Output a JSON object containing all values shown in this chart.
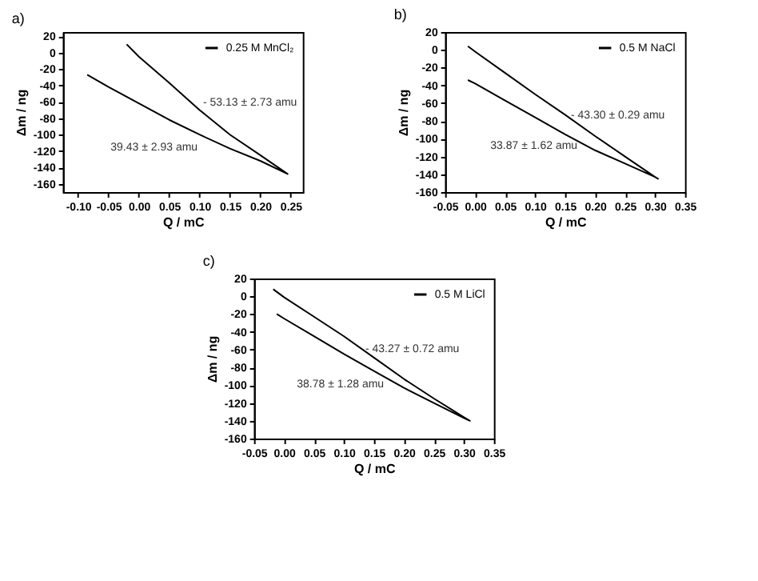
{
  "chart_data": [
    {
      "type": "line",
      "title": "a)",
      "xlabel": "Q / mC",
      "ylabel": "Δm / ng",
      "xlim": [
        -0.125,
        0.27
      ],
      "ylim": [
        -170,
        25
      ],
      "xticks": [
        {
          "value": -0.1,
          "label": "-0.10"
        },
        {
          "value": -0.05,
          "label": "-0.05"
        },
        {
          "value": 0,
          "label": "0.00"
        },
        {
          "value": 0.05,
          "label": "0.05"
        },
        {
          "value": 0.1,
          "label": "0.10"
        },
        {
          "value": 0.15,
          "label": "0.15"
        },
        {
          "value": 0.2,
          "label": "0.20"
        },
        {
          "value": 0.25,
          "label": "0.25"
        }
      ],
      "yticks": [
        {
          "value": -160,
          "label": "-160"
        },
        {
          "value": -140,
          "label": "-140"
        },
        {
          "value": -120,
          "label": "-120"
        },
        {
          "value": -100,
          "label": "-100"
        },
        {
          "value": -80,
          "label": "-80"
        },
        {
          "value": -60,
          "label": "-60"
        },
        {
          "value": -40,
          "label": "-40"
        },
        {
          "value": -20,
          "label": "-20"
        },
        {
          "value": 0,
          "label": "0"
        },
        {
          "value": 20,
          "label": "20"
        }
      ],
      "legend": "top right",
      "grid": false,
      "series": [
        {
          "name": "0.25 M MnCl₂",
          "color": "#000000",
          "x": [
            -0.02,
            0,
            0.05,
            0.1,
            0.15,
            0.2,
            0.245,
            0.2,
            0.15,
            0.1,
            0.05,
            0,
            -0.05,
            -0.085
          ],
          "values": [
            10,
            -5,
            -37,
            -70,
            -100,
            -125,
            -148,
            -132,
            -117,
            -100,
            -82,
            -62,
            -42,
            -27
          ]
        }
      ],
      "annotations": [
        "- 53.13 ± 2.73 amu",
        "39.43 ± 2.93 amu"
      ]
    },
    {
      "type": "line",
      "title": "b)",
      "xlabel": "Q / mC",
      "ylabel": "Δm / ng",
      "xlim": [
        -0.05,
        0.35
      ],
      "ylim": [
        -160,
        20
      ],
      "xticks": [
        {
          "value": -0.05,
          "label": "-0.05"
        },
        {
          "value": 0,
          "label": "0.00"
        },
        {
          "value": 0.05,
          "label": "0.05"
        },
        {
          "value": 0.1,
          "label": "0.10"
        },
        {
          "value": 0.15,
          "label": "0.15"
        },
        {
          "value": 0.2,
          "label": "0.20"
        },
        {
          "value": 0.25,
          "label": "0.25"
        },
        {
          "value": 0.3,
          "label": "0.30"
        },
        {
          "value": 0.35,
          "label": "0.35"
        }
      ],
      "yticks": [
        {
          "value": -160,
          "label": "-160"
        },
        {
          "value": -140,
          "label": "-140"
        },
        {
          "value": -120,
          "label": "-120"
        },
        {
          "value": -100,
          "label": "-100"
        },
        {
          "value": -80,
          "label": "-80"
        },
        {
          "value": -60,
          "label": "-60"
        },
        {
          "value": -40,
          "label": "-40"
        },
        {
          "value": -20,
          "label": "-20"
        },
        {
          "value": 0,
          "label": "0"
        },
        {
          "value": 20,
          "label": "20"
        }
      ],
      "legend": "top right",
      "grid": false,
      "series": [
        {
          "name": "0.5 M NaCl",
          "color": "#000000",
          "x": [
            -0.012,
            0,
            0.05,
            0.1,
            0.15,
            0.2,
            0.25,
            0.3,
            0.305,
            0.3,
            0.25,
            0.2,
            0.15,
            0.1,
            0.05,
            0,
            -0.012
          ],
          "values": [
            4,
            -2,
            -26,
            -50,
            -73,
            -97,
            -120,
            -143,
            -145,
            -143,
            -128,
            -113,
            -95,
            -76,
            -57,
            -38,
            -34
          ]
        }
      ],
      "annotations": [
        "- 43.30 ± 0.29 amu",
        "33.87 ± 1.62 amu"
      ]
    },
    {
      "type": "line",
      "title": "c)",
      "xlabel": "Q / mC",
      "ylabel": "Δm / ng",
      "xlim": [
        -0.05,
        0.35
      ],
      "ylim": [
        -160,
        20
      ],
      "xticks": [
        {
          "value": -0.05,
          "label": "-0.05"
        },
        {
          "value": 0,
          "label": "0.00"
        },
        {
          "value": 0.05,
          "label": "0.05"
        },
        {
          "value": 0.1,
          "label": "0.10"
        },
        {
          "value": 0.15,
          "label": "0.15"
        },
        {
          "value": 0.2,
          "label": "0.20"
        },
        {
          "value": 0.25,
          "label": "0.25"
        },
        {
          "value": 0.3,
          "label": "0.30"
        },
        {
          "value": 0.35,
          "label": "0.35"
        }
      ],
      "yticks": [
        {
          "value": -160,
          "label": "-160"
        },
        {
          "value": -140,
          "label": "-140"
        },
        {
          "value": -120,
          "label": "-120"
        },
        {
          "value": -100,
          "label": "-100"
        },
        {
          "value": -80,
          "label": "-80"
        },
        {
          "value": -60,
          "label": "-60"
        },
        {
          "value": -40,
          "label": "-40"
        },
        {
          "value": -20,
          "label": "-20"
        },
        {
          "value": 0,
          "label": "0"
        },
        {
          "value": 20,
          "label": "20"
        }
      ],
      "legend": "top right",
      "grid": false,
      "series": [
        {
          "name": "0.5 M LiCl",
          "color": "#000000",
          "x": [
            -0.018,
            0,
            0.05,
            0.1,
            0.15,
            0.2,
            0.25,
            0.3,
            0.31,
            0.3,
            0.25,
            0.2,
            0.15,
            0.1,
            0.05,
            0,
            -0.012
          ],
          "values": [
            8,
            -1,
            -23,
            -45,
            -69,
            -93,
            -115,
            -136,
            -140,
            -137,
            -120,
            -103,
            -84,
            -65,
            -45,
            -25,
            -20
          ]
        }
      ],
      "annotations": [
        "- 43.27 ± 0.72 amu",
        "38.78 ± 1.28 amu"
      ]
    }
  ]
}
